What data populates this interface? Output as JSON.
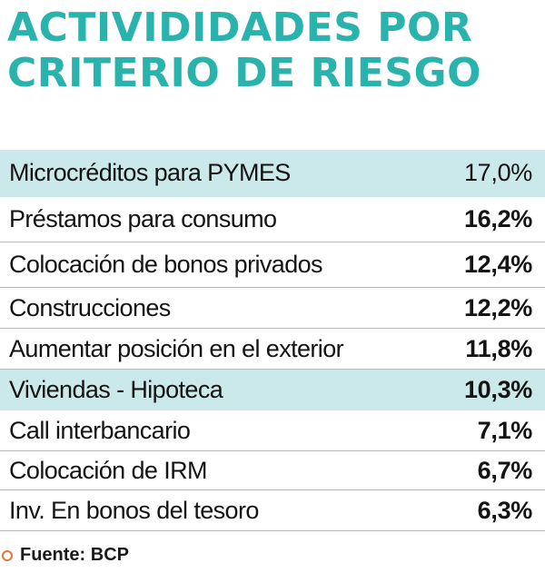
{
  "title": "ACTIVIDIDADES POR CRITERIO DE RIESGO",
  "source": "Fuente: BCP",
  "colors": {
    "title": "#2ab3ac",
    "shaded_row": "#cbe9ea",
    "bullet": "#e8743b"
  },
  "chart_data": {
    "type": "table",
    "title": "ACTIVIDIDADES POR CRITERIO DE RIESGO",
    "columns": [
      "",
      ""
    ],
    "categories": [
      "Microcréditos para PYMES",
      "Préstamos para consumo",
      "Colocación de bonos privados",
      "Construcciones",
      "Aumentar posición en el exterior",
      "Viviendas  - Hipoteca",
      "Call interbancario",
      "Colocación de IRM",
      "Inv. En bonos del tesoro"
    ],
    "values": [
      17.0,
      16.2,
      12.4,
      12.2,
      11.8,
      10.3,
      7.1,
      6.7,
      6.3
    ],
    "value_labels": [
      "17,0%",
      "16,2%",
      "12,4%",
      "12,2%",
      "11,8%",
      "10,3%",
      "7,1%",
      "6,7%",
      "6,3%"
    ],
    "unit": "%",
    "highlighted_rows": [
      0,
      5
    ],
    "source": "Fuente: BCP"
  }
}
